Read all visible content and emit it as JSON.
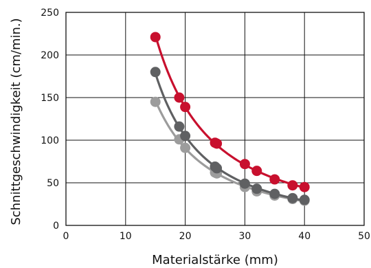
{
  "chart_data": {
    "type": "scatter",
    "xlabel": "Materialstärke (mm)",
    "ylabel": "Schnittgeschwindigkeit (cm/min.)",
    "xlim": [
      0,
      50
    ],
    "ylim": [
      0,
      250
    ],
    "xticks": [
      0,
      10,
      20,
      30,
      40,
      50
    ],
    "yticks": [
      0,
      50,
      100,
      150,
      200,
      250
    ],
    "grid": true,
    "legend": "none",
    "series": [
      {
        "color": "#c8102e",
        "x": [
          15,
          19,
          20,
          25,
          25.3,
          30,
          32,
          35,
          38,
          40
        ],
        "y": [
          221,
          150,
          139,
          97,
          96,
          72,
          64,
          54,
          47,
          45
        ]
      },
      {
        "color": "#5f6062",
        "x": [
          15,
          19,
          20,
          25,
          25.3,
          30,
          32,
          35,
          38,
          40
        ],
        "y": [
          180,
          116,
          105,
          69,
          67,
          49,
          43,
          37,
          32,
          30
        ]
      },
      {
        "color": "#9c9c9c",
        "x": [
          15,
          19,
          20,
          25,
          25.3,
          30,
          32,
          35,
          38,
          40
        ],
        "y": [
          145,
          101,
          91,
          62,
          61,
          45,
          40,
          35,
          31,
          29
        ]
      }
    ]
  }
}
